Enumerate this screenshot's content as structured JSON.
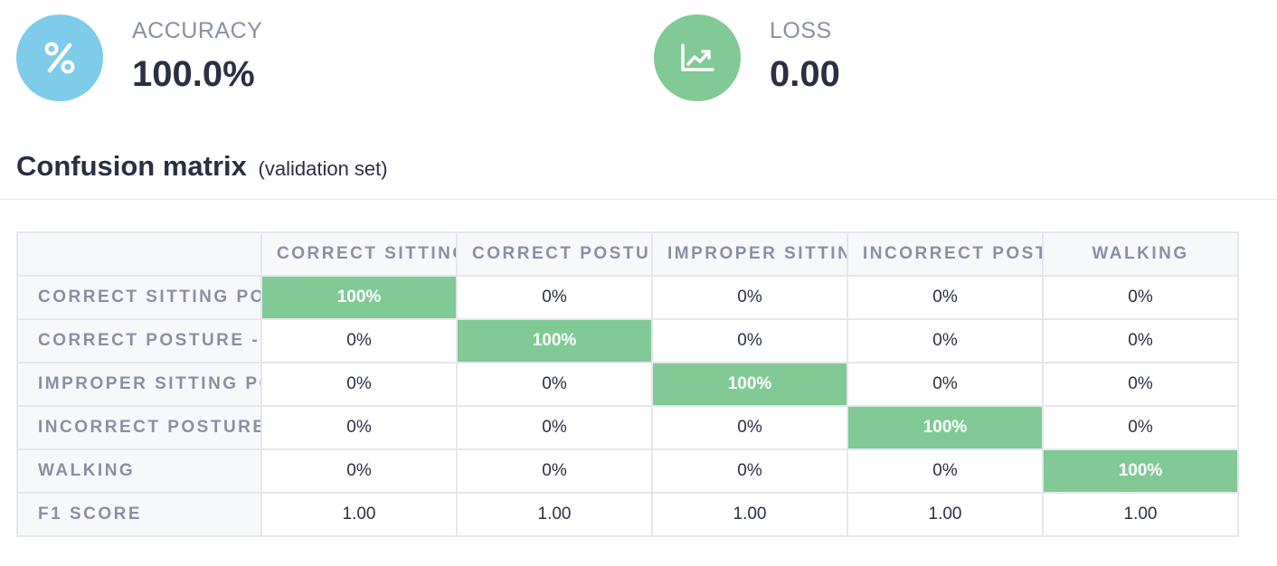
{
  "metrics": {
    "accuracy": {
      "label": "ACCURACY",
      "value": "100.0%",
      "icon": "percent-icon",
      "color": "#7fcbea"
    },
    "loss": {
      "label": "LOSS",
      "value": "0.00",
      "icon": "trending-chart-icon",
      "color": "#81c995"
    }
  },
  "section": {
    "title": "Confusion matrix",
    "subtitle": "(validation set)"
  },
  "matrix": {
    "columns": [
      "CORRECT SITTING",
      "CORRECT POSTUR",
      "IMPROPER SITTIN",
      "INCORRECT POSTU",
      "WALKING"
    ],
    "rows": [
      {
        "label": "CORRECT SITTING POS",
        "cells": [
          "100%",
          "0%",
          "0%",
          "0%",
          "0%"
        ]
      },
      {
        "label": "CORRECT POSTURE - S",
        "cells": [
          "0%",
          "100%",
          "0%",
          "0%",
          "0%"
        ]
      },
      {
        "label": "IMPROPER SITTING PC",
        "cells": [
          "0%",
          "0%",
          "100%",
          "0%",
          "0%"
        ]
      },
      {
        "label": "INCORRECT POSTURE",
        "cells": [
          "0%",
          "0%",
          "0%",
          "100%",
          "0%"
        ]
      },
      {
        "label": "WALKING",
        "cells": [
          "0%",
          "0%",
          "0%",
          "0%",
          "100%"
        ]
      }
    ],
    "f1": {
      "label": "F1 SCORE",
      "cells": [
        "1.00",
        "1.00",
        "1.00",
        "1.00",
        "1.00"
      ]
    },
    "highlight_color": "#81c995"
  }
}
